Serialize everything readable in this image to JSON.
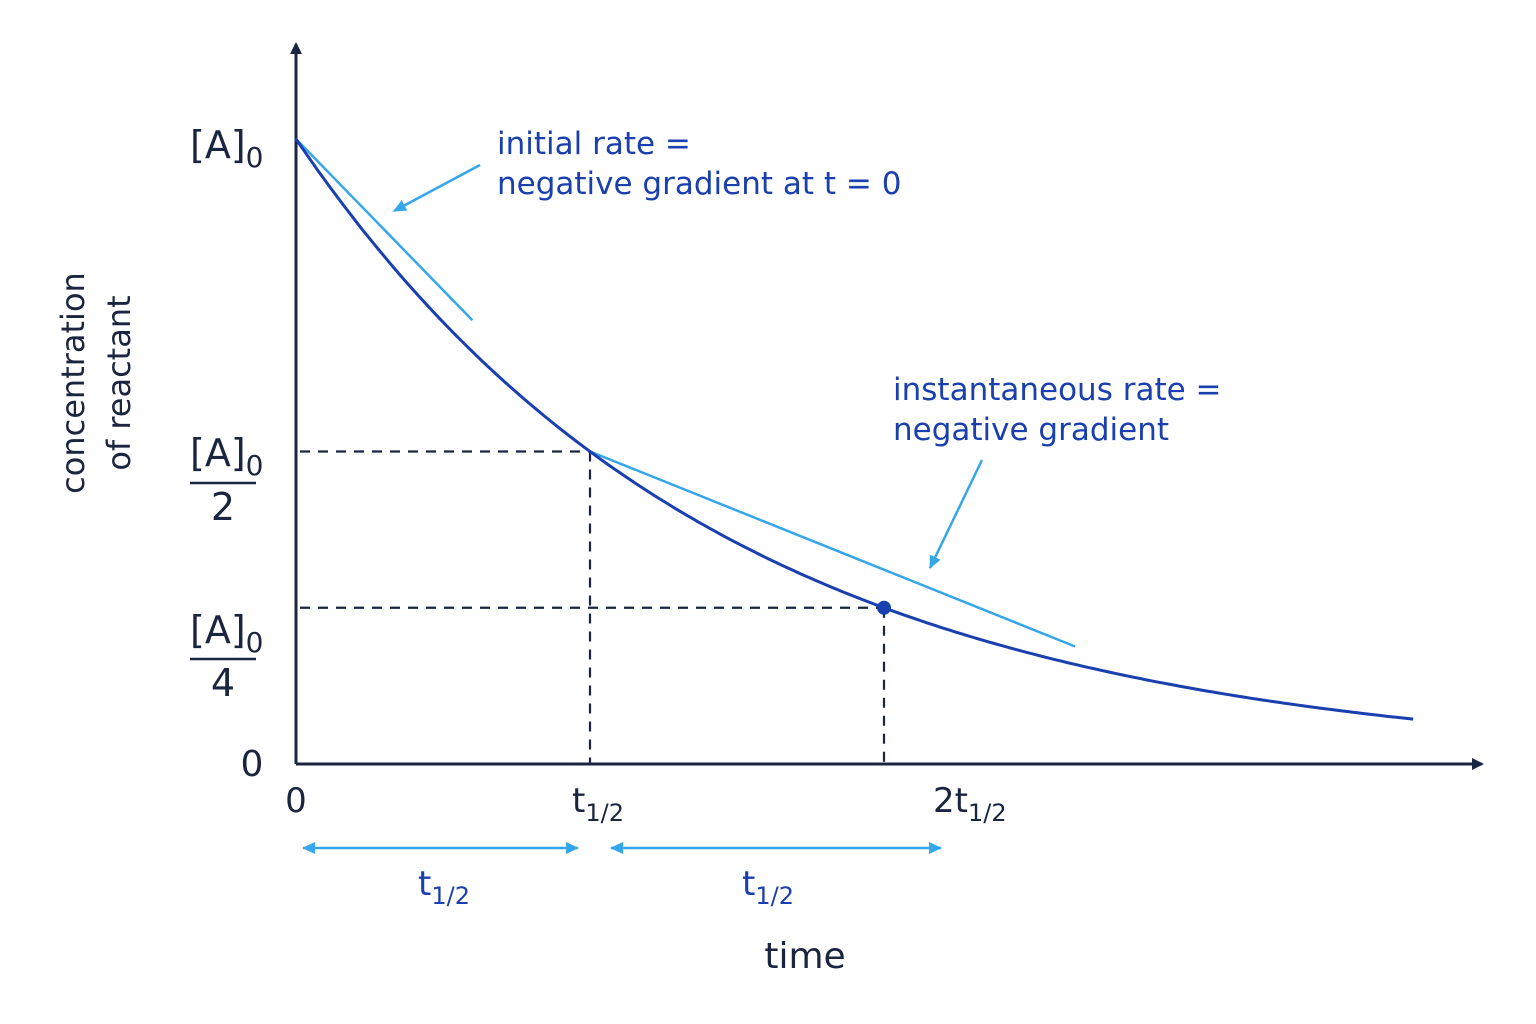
{
  "colors": {
    "axis": "#1a2540",
    "curve": "#1a3fae",
    "tangent": "#35a6ea",
    "annotation_text": "#1a3fae",
    "dashed": "#1a2540",
    "arrow": "#35a6ea"
  },
  "chart_data": {
    "type": "line",
    "curve": "exponential-decay",
    "xlabel": "time",
    "ylabel_lines": [
      "concentration",
      "of reactant"
    ],
    "x_ticks": [
      {
        "value": 0,
        "main": "0",
        "sub": ""
      },
      {
        "value": 1,
        "main": "t",
        "sub": "1/2"
      },
      {
        "value": 2,
        "main": "2t",
        "sub": "1/2"
      }
    ],
    "y_ticks": [
      {
        "value": 1,
        "top": "[A]",
        "sub": "0",
        "denom": ""
      },
      {
        "value": 0.5,
        "top": "[A]",
        "sub": "0",
        "denom": "2"
      },
      {
        "value": 0.25,
        "top": "[A]",
        "sub": "0",
        "denom": "4"
      },
      {
        "value": 0,
        "top": "0",
        "sub": "",
        "denom": ""
      }
    ],
    "xlim": [
      0,
      3.8
    ],
    "ylim": [
      0,
      1.2
    ],
    "series": [
      {
        "x": [
          0,
          0.25,
          0.5,
          0.75,
          1,
          1.25,
          1.5,
          1.75,
          2,
          2.5,
          3,
          3.5,
          3.8
        ],
        "y": [
          1,
          0.841,
          0.707,
          0.595,
          0.5,
          0.42,
          0.354,
          0.297,
          0.25,
          0.177,
          0.125,
          0.088,
          0.072
        ]
      }
    ],
    "marked_point": {
      "x": 2,
      "y": 0.25
    },
    "tangents": [
      {
        "at_x": 0,
        "at_y": 1,
        "to_x": 0.6,
        "to_y": 0.71
      },
      {
        "at_x": 1,
        "at_y": 0.5,
        "to_x": 2.65,
        "to_y": 0.188
      }
    ],
    "interval_arrows": [
      {
        "from": 0,
        "to": 1,
        "main": "t",
        "sub": "1/2"
      },
      {
        "from": 1,
        "to": 2,
        "main": "t",
        "sub": "1/2"
      }
    ],
    "annotations": [
      {
        "lines": [
          "initial rate =",
          "negative gradient at t = 0"
        ]
      },
      {
        "lines": [
          "instantaneous rate =",
          "negative gradient"
        ]
      }
    ]
  }
}
